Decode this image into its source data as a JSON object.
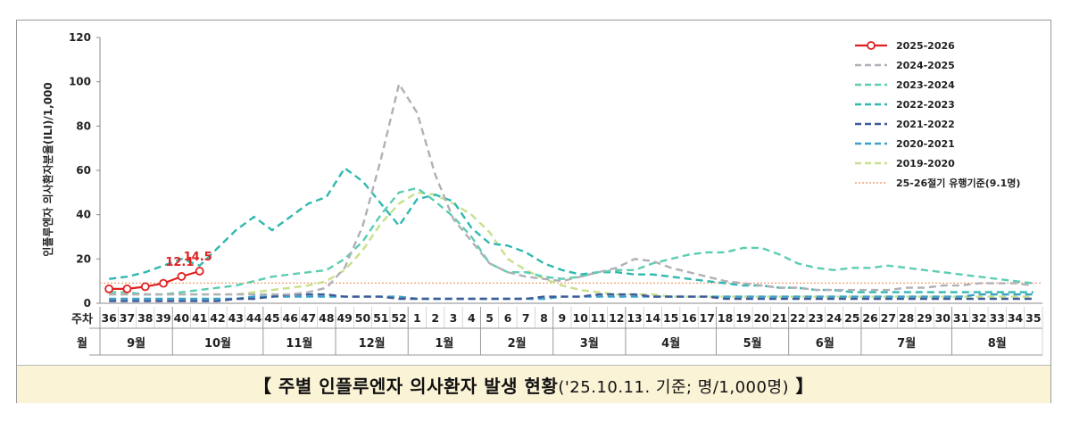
{
  "caption": {
    "open": "【 주별 인플루엔자 의사환자 발생 현황",
    "note": "('25.10.11. 기준; 명/1,000명)",
    "close": " 】"
  },
  "chart_data": {
    "type": "line",
    "ylabel": "인플루엔자 의사환자분율(ILI)/1,000",
    "ylim": [
      0,
      120
    ],
    "yticks": [
      0,
      20,
      40,
      60,
      80,
      100,
      120
    ],
    "x_row_label": "주차",
    "month_row_label": "월",
    "weeks": [
      "36",
      "37",
      "38",
      "39",
      "40",
      "41",
      "42",
      "43",
      "44",
      "45",
      "46",
      "47",
      "48",
      "49",
      "50",
      "51",
      "52",
      "1",
      "2",
      "3",
      "4",
      "5",
      "6",
      "7",
      "8",
      "9",
      "10",
      "11",
      "12",
      "13",
      "14",
      "15",
      "16",
      "17",
      "18",
      "19",
      "20",
      "21",
      "22",
      "23",
      "24",
      "25",
      "26",
      "27",
      "28",
      "29",
      "30",
      "31",
      "32",
      "33",
      "34",
      "35"
    ],
    "months": [
      {
        "label": "9월",
        "start": 0,
        "end": 4
      },
      {
        "label": "10월",
        "start": 4,
        "end": 9
      },
      {
        "label": "11월",
        "start": 9,
        "end": 13
      },
      {
        "label": "12월",
        "start": 13,
        "end": 17
      },
      {
        "label": "1월",
        "start": 17,
        "end": 21
      },
      {
        "label": "2월",
        "start": 21,
        "end": 25
      },
      {
        "label": "3월",
        "start": 25,
        "end": 29
      },
      {
        "label": "4월",
        "start": 29,
        "end": 34
      },
      {
        "label": "5월",
        "start": 34,
        "end": 38
      },
      {
        "label": "6월",
        "start": 38,
        "end": 42
      },
      {
        "label": "7월",
        "start": 42,
        "end": 47
      },
      {
        "label": "8월",
        "start": 47,
        "end": 52
      }
    ],
    "threshold": {
      "name": "25-26절기 유행기준(9.1명)",
      "value": 9.1,
      "color": "#f0a070"
    },
    "series": [
      {
        "name": "2025-2026",
        "color": "#e02020",
        "style": "solid-marker",
        "values": [
          6.5,
          6.5,
          7.5,
          9.0,
          12.1,
          14.5
        ]
      },
      {
        "name": "2024-2025",
        "color": "#b0b0b8",
        "style": "dashed",
        "values": [
          4,
          4,
          4,
          4,
          4,
          4,
          4,
          4,
          4,
          4,
          4,
          5,
          7,
          16,
          35,
          65,
          99,
          86,
          58,
          38,
          28,
          18,
          14,
          12,
          11,
          10,
          12,
          14,
          16,
          20,
          19,
          16,
          14,
          12,
          10,
          9,
          8,
          7,
          7,
          6,
          6,
          6,
          6,
          6,
          7,
          7,
          8,
          8,
          9,
          9,
          9,
          8
        ]
      },
      {
        "name": "2023-2024",
        "color": "#5ccdb2",
        "style": "dashed",
        "values": [
          5,
          5,
          4,
          4,
          5,
          6,
          7,
          8,
          10,
          12,
          13,
          14,
          15,
          20,
          28,
          40,
          50,
          52,
          46,
          39,
          30,
          18,
          14,
          14,
          12,
          11,
          12,
          14,
          15,
          15,
          18,
          20,
          22,
          23,
          23,
          25,
          25,
          22,
          18,
          16,
          15,
          16,
          16,
          17,
          16,
          15,
          14,
          13,
          12,
          11,
          10,
          9
        ]
      },
      {
        "name": "2022-2023",
        "color": "#30b8b0",
        "style": "dashed",
        "values": [
          11,
          12,
          14,
          17,
          20,
          17,
          25,
          33,
          39,
          33,
          39,
          45,
          48,
          61,
          55,
          45,
          35,
          47,
          49,
          46,
          34,
          27,
          26,
          23,
          18,
          15,
          13,
          14,
          14,
          13,
          13,
          12,
          11,
          10,
          9,
          8,
          8,
          7,
          7,
          6,
          6,
          5,
          5,
          5,
          5,
          5,
          5,
          5,
          5,
          5,
          5,
          5
        ]
      },
      {
        "name": "2021-2022",
        "color": "#3f5a98",
        "style": "dashed",
        "values": [
          1,
          1,
          1,
          1,
          1,
          1,
          1,
          2,
          2,
          3,
          4,
          4,
          4,
          3,
          3,
          3,
          2,
          2,
          2,
          2,
          2,
          2,
          2,
          2,
          3,
          3,
          3,
          4,
          4,
          4,
          3,
          3,
          3,
          3,
          2,
          2,
          2,
          2,
          2,
          2,
          2,
          2,
          2,
          2,
          2,
          2,
          2,
          2,
          2,
          2,
          2,
          2
        ]
      },
      {
        "name": "2020-2021",
        "color": "#3aa2c8",
        "style": "dashed",
        "values": [
          2,
          2,
          2,
          2,
          2,
          2,
          2,
          2,
          3,
          3,
          3,
          3,
          3,
          3,
          3,
          3,
          3,
          2,
          2,
          2,
          2,
          2,
          2,
          2,
          2,
          3,
          3,
          3,
          3,
          3,
          3,
          3,
          3,
          3,
          3,
          3,
          3,
          3,
          3,
          3,
          3,
          3,
          3,
          3,
          3,
          3,
          3,
          3,
          4,
          4,
          4,
          4
        ]
      },
      {
        "name": "2019-2020",
        "color": "#c8e08a",
        "style": "dashed",
        "values": [
          4,
          4,
          4,
          4,
          4,
          4,
          4,
          4,
          5,
          6,
          7,
          8,
          10,
          15,
          24,
          36,
          45,
          50,
          49,
          45,
          40,
          32,
          20,
          15,
          11,
          8,
          6,
          5,
          4,
          4,
          4,
          3,
          3,
          3,
          3,
          3,
          3,
          3,
          3,
          3,
          3,
          3,
          3,
          3,
          3,
          3,
          3,
          3,
          3,
          3,
          3,
          3
        ]
      }
    ],
    "data_labels": [
      {
        "series": "2025-2026",
        "index": 4,
        "text": "12.1"
      },
      {
        "series": "2025-2026",
        "index": 5,
        "text": "14.5"
      }
    ]
  }
}
